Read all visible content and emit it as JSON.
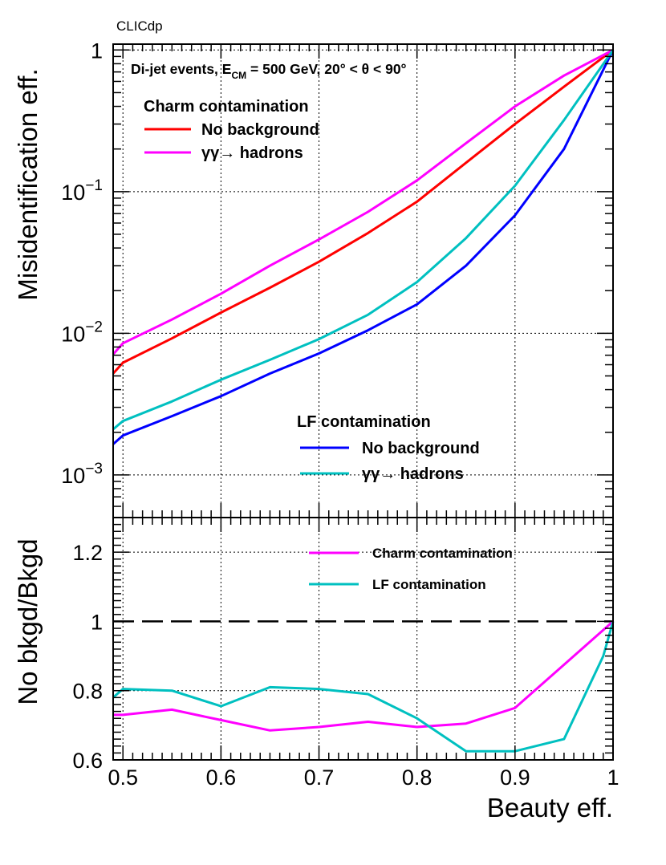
{
  "header": {
    "label": "CLICdp"
  },
  "colors": {
    "charm_nobkg": "#ff0000",
    "charm_bkg": "#ff00ff",
    "lf_nobkg": "#0000ff",
    "lf_bkg": "#00c0c0",
    "reference": "#000000"
  },
  "chart_data": [
    {
      "type": "line",
      "panel": "top",
      "annotation": {
        "prefix": "Di-jet events, E",
        "sub": "CM",
        "suffix": " = 500 GeV, 20° < θ < 90°"
      },
      "ylabel": "Misidentification eff.",
      "yscale": "log",
      "xlim": [
        0.49,
        1.0
      ],
      "ylim": [
        0.0005,
        1.1
      ],
      "yticks": [
        {
          "value": 1,
          "base": "1",
          "exp": ""
        },
        {
          "value": 0.1,
          "base": "10",
          "exp": "−1"
        },
        {
          "value": 0.01,
          "base": "10",
          "exp": "−2"
        },
        {
          "value": 0.001,
          "base": "10",
          "exp": "−3"
        }
      ],
      "legend_groups": [
        {
          "title": "Charm contamination",
          "entries": [
            "No background",
            "γγ→ hadrons"
          ]
        },
        {
          "title": "LF contamination",
          "entries": [
            "No background",
            "γγ→ hadrons"
          ]
        }
      ],
      "x": [
        0.49,
        0.5,
        0.55,
        0.6,
        0.65,
        0.7,
        0.75,
        0.8,
        0.85,
        0.9,
        0.95,
        1.0
      ],
      "series": [
        {
          "name": "Charm contamination — No background",
          "color_key": "charm_nobkg",
          "values": [
            0.0052,
            0.0062,
            0.0092,
            0.014,
            0.021,
            0.032,
            0.051,
            0.085,
            0.16,
            0.3,
            0.55,
            1.0
          ]
        },
        {
          "name": "Charm contamination — γγ→ hadrons",
          "color_key": "charm_bkg",
          "values": [
            0.0071,
            0.0085,
            0.0125,
            0.019,
            0.03,
            0.046,
            0.072,
            0.12,
            0.22,
            0.4,
            0.66,
            1.0
          ]
        },
        {
          "name": "LF contamination — No background",
          "color_key": "lf_nobkg",
          "values": [
            0.00165,
            0.0019,
            0.0026,
            0.0036,
            0.0052,
            0.0072,
            0.0105,
            0.016,
            0.03,
            0.068,
            0.2,
            1.0
          ]
        },
        {
          "name": "LF contamination — γγ→ hadrons",
          "color_key": "lf_bkg",
          "values": [
            0.0021,
            0.0024,
            0.0033,
            0.0047,
            0.0065,
            0.0091,
            0.0135,
            0.023,
            0.047,
            0.11,
            0.32,
            1.0
          ]
        }
      ]
    },
    {
      "type": "line",
      "panel": "bottom",
      "xlabel": "Beauty eff.",
      "ylabel": "No bkgd/Bkgd",
      "xlim": [
        0.49,
        1.0
      ],
      "ylim": [
        0.6,
        1.3
      ],
      "xticks": [
        "0.5",
        "0.6",
        "0.7",
        "0.8",
        "0.9",
        "1"
      ],
      "yticks": [
        "0.6",
        "0.8",
        "1",
        "1.2"
      ],
      "reference_line": 1.0,
      "legend": [
        "Charm contamination",
        "LF contamination"
      ],
      "series": [
        {
          "name": "Charm contamination",
          "color_key": "charm_bkg",
          "x": [
            0.49,
            0.5,
            0.55,
            0.6,
            0.65,
            0.7,
            0.75,
            0.8,
            0.85,
            0.9,
            0.95,
            1.0
          ],
          "values": [
            0.73,
            0.73,
            0.745,
            0.715,
            0.685,
            0.695,
            0.71,
            0.695,
            0.705,
            0.75,
            0.875,
            1.0
          ]
        },
        {
          "name": "LF contamination",
          "color_key": "lf_bkg",
          "x": [
            0.49,
            0.5,
            0.55,
            0.6,
            0.65,
            0.7,
            0.75,
            0.8,
            0.85,
            0.9,
            0.95,
            0.99,
            1.0
          ],
          "values": [
            0.78,
            0.805,
            0.8,
            0.755,
            0.81,
            0.805,
            0.79,
            0.72,
            0.625,
            0.625,
            0.66,
            0.9,
            1.0
          ]
        }
      ]
    }
  ]
}
